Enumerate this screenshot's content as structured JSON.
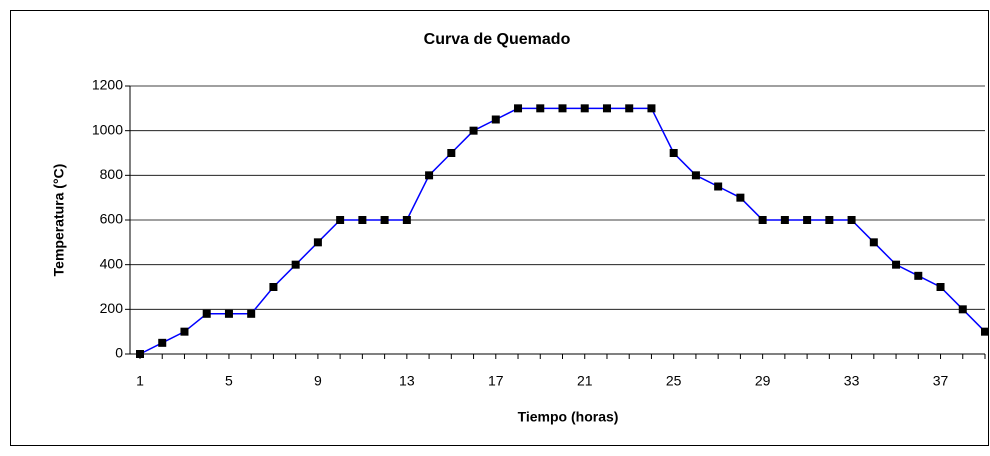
{
  "chart_data": {
    "type": "line",
    "title": "Curva de Quemado",
    "x_label": "Tiempo (horas)",
    "y_label": "Temperatura (°C)",
    "categories": [
      1,
      null,
      null,
      null,
      5,
      null,
      null,
      null,
      9,
      null,
      null,
      null,
      13,
      null,
      null,
      null,
      17,
      null,
      null,
      null,
      21,
      null,
      null,
      null,
      25,
      null,
      null,
      null,
      29,
      null,
      null,
      null,
      33,
      null,
      null,
      null,
      37,
      null,
      null
    ],
    "series": [
      {
        "color": "#0000ff",
        "marker_color": "#000000",
        "values": [
          0,
          50,
          100,
          180,
          180,
          180,
          300,
          400,
          500,
          600,
          600,
          600,
          600,
          800,
          900,
          1000,
          1050,
          1100,
          1100,
          1100,
          1100,
          1100,
          1100,
          1100,
          900,
          800,
          750,
          700,
          600,
          600,
          600,
          600,
          600,
          500,
          400,
          350,
          300,
          200,
          100
        ]
      }
    ],
    "ylim": [
      0,
      1200
    ],
    "yticks": [
      0,
      200,
      400,
      600,
      800,
      1000,
      1200
    ],
    "grid": true
  }
}
